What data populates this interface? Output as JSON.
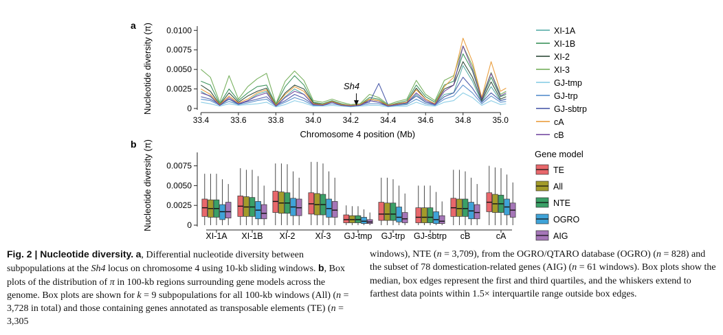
{
  "figure": {
    "panel_a_label": "a",
    "panel_b_label": "b",
    "sh4_label": "Sh4",
    "caption": {
      "fig_label": "Fig. 2 | Nucleotide diversity.",
      "a_label": "a",
      "a_text_1": ", Differential nucleotide diversity between subpopulations at the ",
      "a_gene": "Sh4",
      "a_text_2": " locus on chromosome 4 using 10-kb sliding windows. ",
      "b_label": "b",
      "b_text_1": ", Box plots of the distribution of ",
      "pi_symbol": "π",
      "b_text_2": " in 100-kb regions surrounding gene models across the genome. Box plots are shown for ",
      "k_eq": "k",
      "b_text_3": " = 9 subpopulations for all 100-kb windows (All) (",
      "n1": "n",
      "b_text_4": " = 3,728 in total) and those containing genes annotated as transposable elements (TE) (",
      "n2": "n",
      "b_text_5": " = 3,305",
      "right_1": "windows), NTE (",
      "n3": "n",
      "right_2": " = 3,709), from the OGRO/QTARO database (OGRO) (",
      "n4": "n",
      "right_3": " = 828) and the subset of 78 domestication-related genes (AIG) (",
      "n5": "n",
      "right_4": " = 61 windows). Box plots show the median, box edges represent the first and third quartiles, and the whiskers extend to farthest data points within 1.5× interquartile range outside box edges."
    }
  },
  "chart_data": [
    {
      "type": "line",
      "panel": "a",
      "xlabel": "Chromosome 4 position (Mb)",
      "ylabel": "Nucleotide diversity (π)",
      "xlim": [
        33.38,
        35.08
      ],
      "ylim": [
        0,
        0.0102
      ],
      "xticks": [
        "33.4",
        "33.6",
        "33.8",
        "34.0",
        "34.2",
        "34.4",
        "34.6",
        "34.8",
        "35.0"
      ],
      "xtick_values": [
        33.4,
        33.6,
        33.8,
        34.0,
        34.2,
        34.4,
        34.6,
        34.8,
        35.0
      ],
      "yticks": [
        "0",
        "0.0025",
        "0.0050",
        "0.0075",
        "0.0100"
      ],
      "ytick_values": [
        0,
        0.0025,
        0.005,
        0.0075,
        0.01
      ],
      "annotation": {
        "text": "Sh4",
        "x": 34.23,
        "y": 0.0018
      },
      "legend_position": "right",
      "x": [
        33.4,
        33.45,
        33.5,
        33.55,
        33.6,
        33.65,
        33.7,
        33.75,
        33.8,
        33.85,
        33.9,
        33.95,
        34.0,
        34.05,
        34.1,
        34.15,
        34.2,
        34.25,
        34.3,
        34.35,
        34.4,
        34.45,
        34.5,
        34.55,
        34.6,
        34.65,
        34.7,
        34.75,
        34.8,
        34.85,
        34.9,
        34.95,
        35.0,
        35.03
      ],
      "series": [
        {
          "name": "XI-1A",
          "color": "#4aa6a0",
          "values": [
            0.0022,
            0.0015,
            0.0004,
            0.0012,
            0.0005,
            0.001,
            0.0018,
            0.0022,
            0.0003,
            0.0015,
            0.0025,
            0.0018,
            0.0005,
            0.0004,
            0.0008,
            0.0004,
            0.0003,
            0.0004,
            0.001,
            0.0008,
            0.0003,
            0.0005,
            0.0006,
            0.0018,
            0.0008,
            0.0005,
            0.0018,
            0.002,
            0.0055,
            0.0035,
            0.0008,
            0.0028,
            0.001,
            0.0012
          ]
        },
        {
          "name": "XI-1B",
          "color": "#2b8a4e",
          "values": [
            0.0035,
            0.003,
            0.0006,
            0.0025,
            0.001,
            0.002,
            0.0028,
            0.003,
            0.0005,
            0.0028,
            0.0042,
            0.003,
            0.0008,
            0.0006,
            0.001,
            0.0006,
            0.0004,
            0.0005,
            0.0014,
            0.0012,
            0.0004,
            0.0007,
            0.001,
            0.003,
            0.0015,
            0.0008,
            0.003,
            0.0035,
            0.007,
            0.0048,
            0.0012,
            0.004,
            0.0015,
            0.0018
          ]
        },
        {
          "name": "XI-2",
          "color": "#1f3d2a",
          "values": [
            0.003,
            0.0022,
            0.0005,
            0.002,
            0.0008,
            0.0016,
            0.0022,
            0.0026,
            0.0004,
            0.002,
            0.003,
            0.0025,
            0.0007,
            0.0005,
            0.0009,
            0.0005,
            0.0003,
            0.0004,
            0.0012,
            0.001,
            0.0003,
            0.0006,
            0.0008,
            0.0026,
            0.0012,
            0.0006,
            0.0025,
            0.003,
            0.006,
            0.004,
            0.001,
            0.0034,
            0.0012,
            0.0015
          ]
        },
        {
          "name": "XI-3",
          "color": "#6aa84f",
          "values": [
            0.005,
            0.004,
            0.0008,
            0.0042,
            0.0012,
            0.0028,
            0.0038,
            0.0045,
            0.0006,
            0.0035,
            0.0048,
            0.0036,
            0.001,
            0.0008,
            0.0012,
            0.0008,
            0.0005,
            0.0006,
            0.0018,
            0.0014,
            0.0005,
            0.0009,
            0.0012,
            0.0036,
            0.0018,
            0.001,
            0.0036,
            0.0042,
            0.008,
            0.0055,
            0.0014,
            0.0046,
            0.0018,
            0.0022
          ]
        },
        {
          "name": "GJ-tmp",
          "color": "#7ec8e3",
          "values": [
            0.0008,
            0.0006,
            0.0003,
            0.0006,
            0.0004,
            0.0005,
            0.0006,
            0.0008,
            0.0002,
            0.0005,
            0.001,
            0.0007,
            0.0003,
            0.0003,
            0.0004,
            0.0003,
            0.0002,
            0.0003,
            0.0004,
            0.0004,
            0.0002,
            0.0003,
            0.0003,
            0.0008,
            0.0004,
            0.0003,
            0.0008,
            0.001,
            0.002,
            0.0014,
            0.0004,
            0.001,
            0.0005,
            0.0006
          ]
        },
        {
          "name": "GJ-trp",
          "color": "#4a86c8",
          "values": [
            0.0012,
            0.001,
            0.0004,
            0.0009,
            0.0005,
            0.0007,
            0.001,
            0.0012,
            0.0003,
            0.0008,
            0.0014,
            0.001,
            0.0004,
            0.0004,
            0.0006,
            0.0004,
            0.0003,
            0.0004,
            0.0006,
            0.0006,
            0.0003,
            0.0004,
            0.0005,
            0.0012,
            0.0006,
            0.0004,
            0.0012,
            0.0016,
            0.003,
            0.002,
            0.0006,
            0.0016,
            0.0008,
            0.0009
          ]
        },
        {
          "name": "GJ-sbtrp",
          "color": "#3d4fa3",
          "values": [
            0.0015,
            0.0012,
            0.0005,
            0.0012,
            0.0006,
            0.0009,
            0.0012,
            0.0015,
            0.0004,
            0.001,
            0.0018,
            0.0013,
            0.0005,
            0.0005,
            0.0008,
            0.0005,
            0.0004,
            0.0005,
            0.0008,
            0.0032,
            0.0004,
            0.0006,
            0.0007,
            0.0016,
            0.0008,
            0.0005,
            0.0015,
            0.002,
            0.004,
            0.0026,
            0.0008,
            0.002,
            0.001,
            0.0012
          ]
        },
        {
          "name": "cA",
          "color": "#e8962e",
          "values": [
            0.0025,
            0.0018,
            0.0005,
            0.0016,
            0.0007,
            0.0012,
            0.002,
            0.0024,
            0.0004,
            0.0018,
            0.0028,
            0.0022,
            0.0006,
            0.0005,
            0.0009,
            0.0005,
            0.0004,
            0.0005,
            0.0012,
            0.001,
            0.0004,
            0.0006,
            0.0008,
            0.0024,
            0.0012,
            0.0006,
            0.0028,
            0.004,
            0.009,
            0.006,
            0.0014,
            0.006,
            0.0022,
            0.0026
          ]
        },
        {
          "name": "cB",
          "color": "#6a3d9a",
          "values": [
            0.002,
            0.0016,
            0.0004,
            0.0014,
            0.0006,
            0.001,
            0.0016,
            0.002,
            0.0003,
            0.0014,
            0.0022,
            0.0018,
            0.0005,
            0.0004,
            0.0008,
            0.0004,
            0.0003,
            0.0004,
            0.001,
            0.0008,
            0.0003,
            0.0005,
            0.0007,
            0.002,
            0.001,
            0.0005,
            0.0022,
            0.003,
            0.008,
            0.005,
            0.0012,
            0.0045,
            0.0016,
            0.002
          ]
        }
      ]
    },
    {
      "type": "box",
      "panel": "b",
      "ylabel": "Nucleotide diversity (π)",
      "ylim": [
        0,
        0.0092
      ],
      "yticks": [
        "0",
        "0.0025",
        "0.0050",
        "0.0075"
      ],
      "ytick_values": [
        0,
        0.0025,
        0.005,
        0.0075
      ],
      "legend_title": "Gene model",
      "legend_position": "right",
      "categories": [
        "XI-1A",
        "XI-1B",
        "XI-2",
        "XI-3",
        "GJ-tmp",
        "GJ-trp",
        "GJ-sbtrp",
        "cB",
        "cA"
      ],
      "series": [
        {
          "name": "TE",
          "color": "#e8676b",
          "boxes": [
            {
              "whislo": 0,
              "q1": 0.0011,
              "med": 0.0022,
              "q3": 0.0033,
              "whishi": 0.0065
            },
            {
              "whislo": 0,
              "q1": 0.0011,
              "med": 0.0024,
              "q3": 0.0037,
              "whishi": 0.0072
            },
            {
              "whislo": 0,
              "q1": 0.0016,
              "med": 0.003,
              "q3": 0.0043,
              "whishi": 0.0078
            },
            {
              "whislo": 0,
              "q1": 0.0014,
              "med": 0.0027,
              "q3": 0.0041,
              "whishi": 0.008
            },
            {
              "whislo": 0,
              "q1": 0.0003,
              "med": 0.0007,
              "q3": 0.0013,
              "whishi": 0.0025
            },
            {
              "whislo": 0,
              "q1": 0.0006,
              "med": 0.0014,
              "q3": 0.0029,
              "whishi": 0.006
            },
            {
              "whislo": 0,
              "q1": 0.0003,
              "med": 0.001,
              "q3": 0.0022,
              "whishi": 0.005
            },
            {
              "whislo": 0,
              "q1": 0.0011,
              "med": 0.0022,
              "q3": 0.0034,
              "whishi": 0.007
            },
            {
              "whislo": 0,
              "q1": 0.0017,
              "med": 0.0029,
              "q3": 0.0041,
              "whishi": 0.0075
            }
          ]
        },
        {
          "name": "All",
          "color": "#a39b2a",
          "boxes": [
            {
              "whislo": 0,
              "q1": 0.001,
              "med": 0.0021,
              "q3": 0.0032,
              "whishi": 0.0065
            },
            {
              "whislo": 0,
              "q1": 0.0011,
              "med": 0.0023,
              "q3": 0.0036,
              "whishi": 0.007
            },
            {
              "whislo": 0,
              "q1": 0.0015,
              "med": 0.0028,
              "q3": 0.0042,
              "whishi": 0.0078
            },
            {
              "whislo": 0,
              "q1": 0.0013,
              "med": 0.0026,
              "q3": 0.004,
              "whishi": 0.008
            },
            {
              "whislo": 0,
              "q1": 0.0003,
              "med": 0.0007,
              "q3": 0.0012,
              "whishi": 0.0024
            },
            {
              "whislo": 0,
              "q1": 0.0006,
              "med": 0.0014,
              "q3": 0.0028,
              "whishi": 0.006
            },
            {
              "whislo": 0,
              "q1": 0.0003,
              "med": 0.001,
              "q3": 0.0022,
              "whishi": 0.005
            },
            {
              "whislo": 0,
              "q1": 0.0011,
              "med": 0.0021,
              "q3": 0.0033,
              "whishi": 0.007
            },
            {
              "whislo": 0,
              "q1": 0.0016,
              "med": 0.0027,
              "q3": 0.0039,
              "whishi": 0.0073
            }
          ]
        },
        {
          "name": "NTE",
          "color": "#3aa067",
          "boxes": [
            {
              "whislo": 0,
              "q1": 0.001,
              "med": 0.0021,
              "q3": 0.0032,
              "whishi": 0.0065
            },
            {
              "whislo": 0,
              "q1": 0.0011,
              "med": 0.0023,
              "q3": 0.0035,
              "whishi": 0.007
            },
            {
              "whislo": 0,
              "q1": 0.0015,
              "med": 0.0028,
              "q3": 0.0041,
              "whishi": 0.0077
            },
            {
              "whislo": 0,
              "q1": 0.0013,
              "med": 0.0026,
              "q3": 0.0039,
              "whishi": 0.0078
            },
            {
              "whislo": 0,
              "q1": 0.0003,
              "med": 0.0007,
              "q3": 0.0012,
              "whishi": 0.0024
            },
            {
              "whislo": 0,
              "q1": 0.0006,
              "med": 0.0014,
              "q3": 0.0028,
              "whishi": 0.0058
            },
            {
              "whislo": 0,
              "q1": 0.0003,
              "med": 0.001,
              "q3": 0.0022,
              "whishi": 0.005
            },
            {
              "whislo": 0,
              "q1": 0.0011,
              "med": 0.0021,
              "q3": 0.0033,
              "whishi": 0.0068
            },
            {
              "whislo": 0,
              "q1": 0.0016,
              "med": 0.0027,
              "q3": 0.0038,
              "whishi": 0.0072
            }
          ]
        },
        {
          "name": "OGRO",
          "color": "#3fa3d8",
          "boxes": [
            {
              "whislo": 0,
              "q1": 0.0007,
              "med": 0.0017,
              "q3": 0.0026,
              "whishi": 0.0058
            },
            {
              "whislo": 0,
              "q1": 0.0008,
              "med": 0.0019,
              "q3": 0.003,
              "whishi": 0.0062
            },
            {
              "whislo": 0,
              "q1": 0.0012,
              "med": 0.0023,
              "q3": 0.0034,
              "whishi": 0.0068
            },
            {
              "whislo": 0,
              "q1": 0.001,
              "med": 0.0021,
              "q3": 0.0033,
              "whishi": 0.0068
            },
            {
              "whislo": 0,
              "q1": 0.0002,
              "med": 0.0005,
              "q3": 0.001,
              "whishi": 0.002
            },
            {
              "whislo": 0,
              "q1": 0.0004,
              "med": 0.001,
              "q3": 0.0023,
              "whishi": 0.005
            },
            {
              "whislo": 0,
              "q1": 0.0002,
              "med": 0.0007,
              "q3": 0.0017,
              "whishi": 0.0042
            },
            {
              "whislo": 0,
              "q1": 0.0008,
              "med": 0.0018,
              "q3": 0.0029,
              "whishi": 0.006
            },
            {
              "whislo": 0,
              "q1": 0.0013,
              "med": 0.0023,
              "q3": 0.0033,
              "whishi": 0.0064
            }
          ]
        },
        {
          "name": "AIG",
          "color": "#a576b8",
          "boxes": [
            {
              "whislo": 0,
              "q1": 0.0009,
              "med": 0.0017,
              "q3": 0.0029,
              "whishi": 0.0052
            },
            {
              "whislo": 0,
              "q1": 0.0008,
              "med": 0.0015,
              "q3": 0.0026,
              "whishi": 0.005
            },
            {
              "whislo": 0,
              "q1": 0.0012,
              "med": 0.0022,
              "q3": 0.0033,
              "whishi": 0.006
            },
            {
              "whislo": 0,
              "q1": 0.001,
              "med": 0.0019,
              "q3": 0.003,
              "whishi": 0.006
            },
            {
              "whislo": 0,
              "q1": 0.0002,
              "med": 0.0004,
              "q3": 0.0007,
              "whishi": 0.0016
            },
            {
              "whislo": 0,
              "q1": 0.0003,
              "med": 0.0008,
              "q3": 0.0016,
              "whishi": 0.004
            },
            {
              "whislo": 0,
              "q1": 0.0002,
              "med": 0.0005,
              "q3": 0.0012,
              "whishi": 0.003
            },
            {
              "whislo": 0,
              "q1": 0.0008,
              "med": 0.0016,
              "q3": 0.0026,
              "whishi": 0.0052
            },
            {
              "whislo": 0,
              "q1": 0.001,
              "med": 0.0019,
              "q3": 0.0028,
              "whishi": 0.0054
            }
          ]
        }
      ]
    }
  ]
}
